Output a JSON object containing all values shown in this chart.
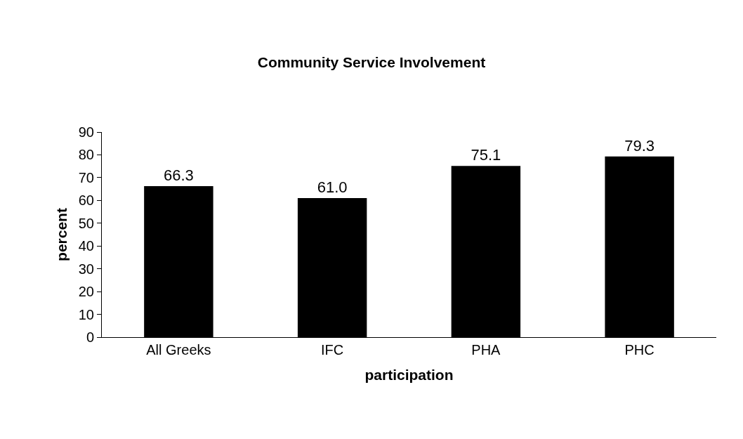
{
  "chart_data": {
    "type": "bar",
    "title": "Community Service Involvement",
    "xlabel": "participation",
    "ylabel": "percent",
    "categories": [
      "All Greeks",
      "IFC",
      "PHA",
      "PHC"
    ],
    "values": [
      66.3,
      61.0,
      75.1,
      79.3
    ],
    "value_labels": [
      "66.3",
      "61.0",
      "75.1",
      "79.3"
    ],
    "color": "#000000",
    "ylim": [
      0,
      90
    ],
    "yticks": [
      0,
      10,
      20,
      30,
      40,
      50,
      60,
      70,
      80,
      90
    ],
    "grid": false,
    "legend": false
  }
}
